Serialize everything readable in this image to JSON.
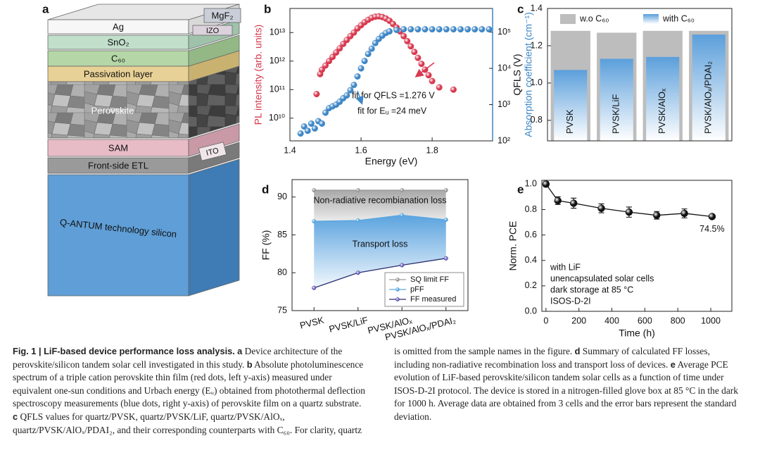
{
  "device": {
    "label": "a",
    "layers": [
      "MgF₂",
      "IZO",
      "Ag",
      "SnO₂",
      "C₆₀",
      "Passivation layer",
      "Perovskite",
      "SAM",
      "ITO",
      "Front-side ETL",
      "Q-ANTUM technology silicon"
    ]
  },
  "chart_data": [
    {
      "type": "scatter",
      "label": "b",
      "xlabel": "Energy (eV)",
      "ylabel": "PL intensity (arb. units)",
      "y2label": "Absorption coefficient (cm⁻¹)",
      "xlim": [
        1.4,
        1.97
      ],
      "xticks": [
        1.4,
        1.6,
        1.8
      ],
      "ylim": [
        1600000000.0,
        70000000000000.0
      ],
      "ylog": true,
      "yticks": [
        {
          "value": 10000000000.0,
          "label": "10¹⁰"
        },
        {
          "value": 100000000000.0,
          "label": "10¹¹"
        },
        {
          "value": 1000000000000.0,
          "label": "10¹²"
        },
        {
          "value": 10000000000000.0,
          "label": "10¹³"
        }
      ],
      "y2lim": [
        100,
        450000
      ],
      "y2log": true,
      "y2ticks": [
        {
          "value": 100,
          "label": "10²"
        },
        {
          "value": 1000,
          "label": "10³"
        },
        {
          "value": 10000,
          "label": "10⁴"
        },
        {
          "value": 100000,
          "label": "10⁵"
        }
      ],
      "series": [
        {
          "color": "#d8384f",
          "x": [
            1.475,
            1.485,
            1.49,
            1.5,
            1.51,
            1.52,
            1.53,
            1.54,
            1.55,
            1.56,
            1.57,
            1.58,
            1.59,
            1.6,
            1.61,
            1.62,
            1.63,
            1.64,
            1.65,
            1.66,
            1.67,
            1.68,
            1.69,
            1.7,
            1.71,
            1.72,
            1.73,
            1.74,
            1.75,
            1.76,
            1.77,
            1.78,
            1.79,
            1.8,
            1.82,
            1.86
          ],
          "values": [
            70000000000.0,
            350000000000.0,
            500000000000.0,
            700000000000.0,
            1000000000000.0,
            1400000000000.0,
            2000000000000.0,
            2800000000000.0,
            4000000000000.0,
            5500000000000.0,
            7500000000000.0,
            10000000000000.0,
            14000000000000.0,
            18000000000000.0,
            23000000000000.0,
            28000000000000.0,
            33000000000000.0,
            36000000000000.0,
            37000000000000.0,
            35000000000000.0,
            31000000000000.0,
            26000000000000.0,
            20000000000000.0,
            15000000000000.0,
            11000000000000.0,
            7500000000000.0,
            5000000000000.0,
            3300000000000.0,
            2100000000000.0,
            1300000000000.0,
            800000000000.0,
            500000000000.0,
            320000000000.0,
            200000000000.0,
            120000000000.0,
            100000000000.0
          ]
        },
        {
          "color": "#3d86c6",
          "axis": "y2",
          "x": [
            1.43,
            1.44,
            1.45,
            1.46,
            1.47,
            1.48,
            1.49,
            1.5,
            1.51,
            1.52,
            1.53,
            1.54,
            1.55,
            1.56,
            1.57,
            1.58,
            1.59,
            1.6,
            1.61,
            1.62,
            1.63,
            1.64,
            1.65,
            1.66,
            1.67,
            1.68,
            1.7,
            1.72,
            1.74,
            1.76,
            1.78,
            1.8,
            1.82,
            1.84,
            1.86,
            1.88,
            1.9,
            1.92,
            1.94,
            1.96
          ],
          "values": [
            160,
            250,
            190,
            300,
            220,
            350,
            300,
            600,
            800,
            900,
            1000,
            1200,
            1500,
            1800,
            2500,
            3500,
            6000,
            10000,
            16000,
            25000,
            35000,
            50000,
            65000,
            80000,
            95000,
            105000,
            115000,
            120000,
            120000,
            120000,
            120000,
            120000,
            120000,
            120000,
            120000,
            120000,
            120000,
            120000,
            120000,
            120000
          ]
        }
      ],
      "annotations": [
        "fit for QFLS =1.276 V",
        "fit for Eᵤ =24 meV"
      ]
    },
    {
      "type": "bar",
      "label": "c",
      "ylabel": "QFLS (V)",
      "ylim": [
        0.69,
        1.4
      ],
      "yticks": [
        0.8,
        {
          "value": 1,
          "label": "1.0"
        },
        1.2,
        1.4
      ],
      "categories": [
        "PVSK",
        "PVSK/LiF",
        "PVSK/AlOₓ",
        "PVSK/AlOₓ/PDAI₂"
      ],
      "series": [
        {
          "name": "w.o C₆₀",
          "color": "#bdbdbd",
          "values": [
            1.28,
            1.27,
            1.28,
            1.28
          ]
        },
        {
          "name": "with C₆₀",
          "color": "#5b9fdb",
          "values": [
            1.07,
            1.13,
            1.14,
            1.26
          ]
        }
      ],
      "legend": "top"
    },
    {
      "type": "line",
      "label": "d",
      "ylabel": "FF (%)",
      "ylim": [
        75,
        92.3
      ],
      "yticks": [
        75,
        80,
        85,
        90
      ],
      "categories": [
        "PVSK",
        "PVSK/LiF",
        "PVSK/AlOₓ",
        "PVSK/AlOₓ/PDAI₂"
      ],
      "series": [
        {
          "name": "SQ limit FF",
          "color": "#9a9a9a",
          "values": [
            90.9,
            90.9,
            90.9,
            90.9
          ]
        },
        {
          "name": "pFF",
          "color": "#5aa6e0",
          "values": [
            86.8,
            86.9,
            87.6,
            87.0
          ]
        },
        {
          "name": "FF measured",
          "color": "#2b2d6e",
          "values": [
            78,
            80,
            81,
            81.9
          ]
        }
      ],
      "annotations": [
        "Non-radiative recombianation loss",
        "Transport loss"
      ],
      "legend": "lower right"
    },
    {
      "type": "errorbar",
      "label": "e",
      "xlabel": "Time (h)",
      "ylabel": "Norm. PCE",
      "xlim": [
        -25,
        1128
      ],
      "xticks": [
        0,
        200,
        400,
        600,
        800,
        1000
      ],
      "ylim": [
        0,
        1.03
      ],
      "yticks": [
        {
          "value": 0,
          "label": "0.0"
        },
        0.2,
        0.4,
        0.6,
        0.8,
        {
          "value": 1,
          "label": "1.0"
        }
      ],
      "x": [
        0,
        72,
        168,
        336,
        504,
        672,
        840,
        1008
      ],
      "values": [
        1,
        0.87,
        0.85,
        0.81,
        0.78,
        0.755,
        0.77,
        0.745
      ],
      "errors": [
        0.02,
        0.03,
        0.04,
        0.035,
        0.04,
        0.03,
        0.035,
        0.01
      ],
      "value_labels": [
        null,
        null,
        null,
        null,
        null,
        null,
        null,
        "74.5%"
      ],
      "color": "#111111",
      "annotations": [
        "with LiF",
        "unencapsulated solar cells",
        "dark storage at 85 °C",
        "ISOS-D-2I"
      ]
    }
  ],
  "caption": {
    "title": "Fig. 1 | LiF-based device performance loss analysis.",
    "parts": [
      {
        "label": "a",
        "text": "Device architecture of the perovskite/silicon tandem solar cell investigated in this study."
      },
      {
        "label": "b",
        "text": "Absolute photoluminescence spectrum of a triple cation perovskite thin film (red dots, left y-axis) measured under equivalent one-sun conditions and Urbach energy (Eᵤ) obtained from photothermal deflection spectroscopy measurements (blue dots, right y-axis) of perovskite film on a quartz substrate."
      },
      {
        "label": "c",
        "text": "QFLS values for quartz/PVSK, quartz/PVSK/LiF, quartz/PVSK/AlOₓ, quartz/PVSK/AlOₓ/PDAI₂, and their corresponding counterparts with C₆₀. For clarity, quartz is omitted from the sample names in the figure."
      },
      {
        "label": "d",
        "text": "Summary of calculated FF losses, including non-radiative recombination loss and transport loss of devices."
      },
      {
        "label": "e",
        "text": "Average PCE evolution of LiF-based perovskite/silicon tandem solar cells as a function of time under ISOS-D-2I protocol. The device is stored in a nitrogen-filled glove box at 85 °C in the dark for 1000 h. Average data are obtained from 3 cells and the error bars represent the standard deviation."
      }
    ]
  }
}
